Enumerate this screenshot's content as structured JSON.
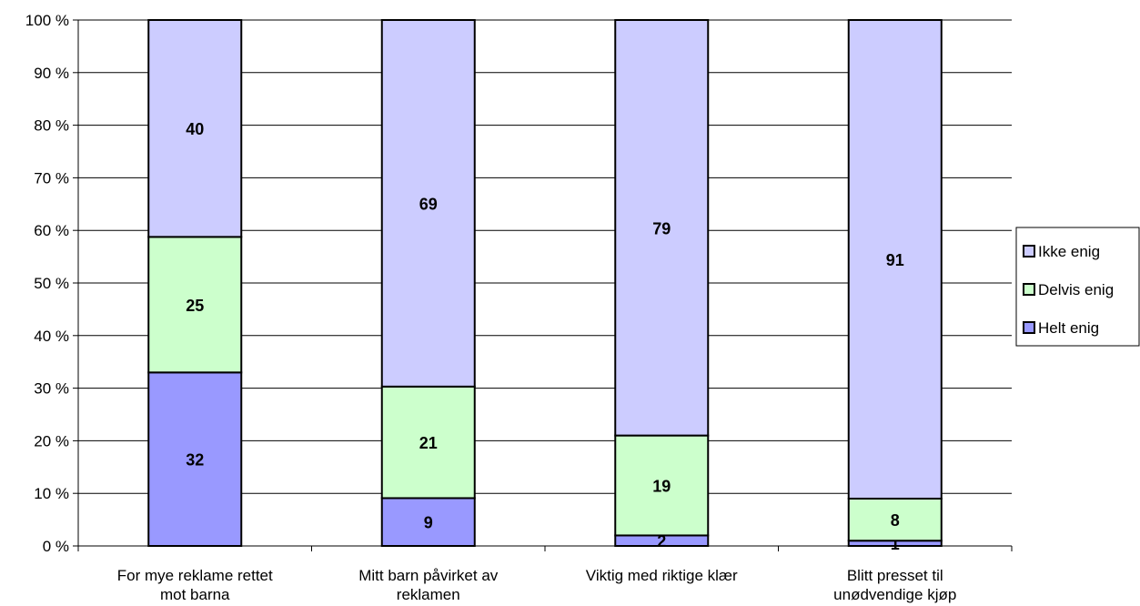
{
  "chart_data": {
    "type": "bar",
    "stacked": true,
    "percent_stacked": true,
    "categories": [
      [
        "For mye reklame rettet",
        "mot barna"
      ],
      [
        "Mitt barn påvirket av",
        "reklamen"
      ],
      [
        "Viktig med riktige klær"
      ],
      [
        "Blitt presset til",
        "unødvendige kjøp"
      ]
    ],
    "series": [
      {
        "name": "Helt enig",
        "values": [
          32,
          9,
          2,
          1
        ],
        "color": "#9999ff"
      },
      {
        "name": "Delvis enig",
        "values": [
          25,
          21,
          19,
          8
        ],
        "color": "#ccffcc"
      },
      {
        "name": "Ikke enig",
        "values": [
          40,
          69,
          79,
          91
        ],
        "color": "#ccccff"
      }
    ],
    "yticks": [
      "0 %",
      "10 %",
      "20 %",
      "30 %",
      "40 %",
      "50 %",
      "60 %",
      "70 %",
      "80 %",
      "90 %",
      "100 %"
    ],
    "ylim": [
      0,
      100
    ],
    "grid": true,
    "legend_position": "right"
  }
}
